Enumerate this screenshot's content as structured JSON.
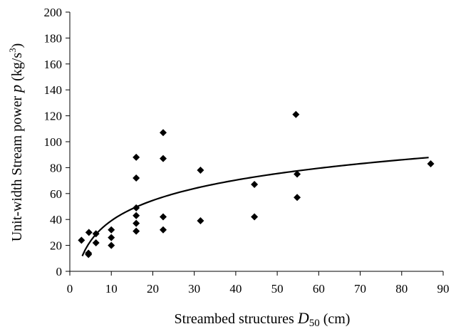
{
  "chart_data": {
    "type": "scatter",
    "xlabel": {
      "prefix": "Streambed structures ",
      "symbol": "D",
      "subscript": "50",
      "suffix": " (cm)"
    },
    "ylabel": {
      "prefix": "Unit-width Stream power ",
      "symbol": "p",
      "unit_open": " (kg/s",
      "superscript": "3",
      "unit_close": ")"
    },
    "xlim": [
      0,
      90
    ],
    "ylim": [
      0,
      200
    ],
    "xticks": [
      0,
      10,
      20,
      30,
      40,
      50,
      60,
      70,
      80,
      90
    ],
    "yticks": [
      0,
      20,
      40,
      60,
      80,
      100,
      120,
      140,
      160,
      180,
      200
    ],
    "grid": false,
    "legend": "none",
    "marker": "diamond",
    "marker_color": "#000000",
    "points": [
      {
        "x": 2.8,
        "y": 24
      },
      {
        "x": 4.5,
        "y": 14
      },
      {
        "x": 4.5,
        "y": 13
      },
      {
        "x": 4.6,
        "y": 30
      },
      {
        "x": 6.3,
        "y": 29
      },
      {
        "x": 6.3,
        "y": 22
      },
      {
        "x": 10,
        "y": 32
      },
      {
        "x": 10,
        "y": 26
      },
      {
        "x": 10,
        "y": 20
      },
      {
        "x": 16,
        "y": 88
      },
      {
        "x": 16,
        "y": 72
      },
      {
        "x": 16,
        "y": 49
      },
      {
        "x": 16,
        "y": 43
      },
      {
        "x": 16,
        "y": 37
      },
      {
        "x": 16,
        "y": 31
      },
      {
        "x": 22.5,
        "y": 107
      },
      {
        "x": 22.5,
        "y": 87
      },
      {
        "x": 22.5,
        "y": 42
      },
      {
        "x": 22.5,
        "y": 32
      },
      {
        "x": 31.5,
        "y": 78
      },
      {
        "x": 31.5,
        "y": 39
      },
      {
        "x": 44.5,
        "y": 67
      },
      {
        "x": 44.5,
        "y": 42
      },
      {
        "x": 54.5,
        "y": 121
      },
      {
        "x": 54.8,
        "y": 75
      },
      {
        "x": 54.8,
        "y": 57
      },
      {
        "x": 87,
        "y": 83
      }
    ],
    "trendline": {
      "type": "logarithmic",
      "x_start": 3,
      "x_end": 86.5,
      "a": 22.6,
      "b": -13.0
    }
  }
}
